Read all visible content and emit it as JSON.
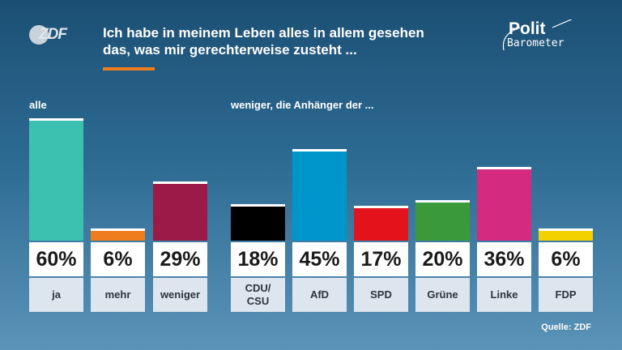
{
  "header": {
    "logo": "ZDF",
    "title_line1": "Ich habe in meinem Leben alles in allem gesehen",
    "title_line2": "das, was mir gerechterweise zusteht ...",
    "brand_line1": "Polit",
    "brand_line2": "Barometer"
  },
  "group_labels": {
    "all": "alle",
    "less": "weniger, die Anhänger der ..."
  },
  "source": "Quelle: ZDF",
  "chart_data": {
    "type": "bar",
    "title": "Ich habe in meinem Leben alles in allem gesehen das, was mir gerechterweise zusteht ...",
    "categories": [
      "ja",
      "mehr",
      "weniger",
      "CDU/\nCSU",
      "AfD",
      "SPD",
      "Grüne",
      "Linke",
      "FDP"
    ],
    "values": [
      60,
      6,
      29,
      18,
      45,
      17,
      20,
      36,
      6
    ],
    "value_labels": [
      "60%",
      "6%",
      "29%",
      "18%",
      "45%",
      "17%",
      "20%",
      "36%",
      "6%"
    ],
    "colors": [
      "#3cc0b0",
      "#f07d1d",
      "#9c1a48",
      "#000000",
      "#0096cc",
      "#e3131b",
      "#3a9a3a",
      "#d42a80",
      "#f3d000"
    ],
    "ylim": [
      0,
      60
    ]
  }
}
